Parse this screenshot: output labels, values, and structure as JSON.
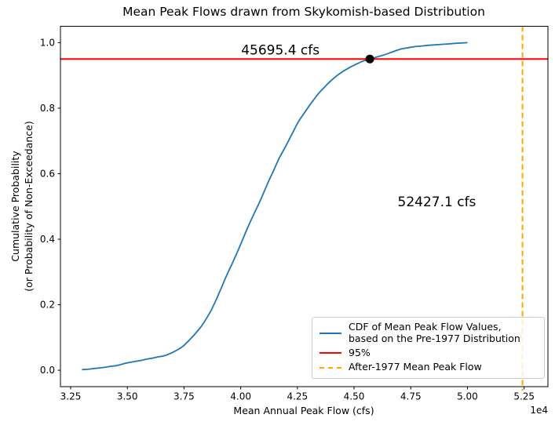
{
  "title": "Mean Peak Flows drawn from Skykomish-based Distribution",
  "chart_data": {
    "type": "line",
    "title": "Mean Peak Flows drawn from Skykomish-based Distribution",
    "xlabel": "Mean Annual Peak Flow (cfs)",
    "ylabel": "Cumulative Probability\n(or Probability of Non-Exceedance)",
    "x_offset_text": "1e4",
    "xlim": [
      32050,
      53550
    ],
    "ylim": [
      -0.05,
      1.05
    ],
    "grid": false,
    "x_ticks": {
      "values": [
        32500,
        35000,
        37500,
        40000,
        42500,
        45000,
        47500,
        50000,
        52500
      ],
      "labels": [
        "3.25",
        "3.50",
        "3.75",
        "4.00",
        "4.25",
        "4.50",
        "4.75",
        "5.00",
        "5.25"
      ]
    },
    "y_ticks": {
      "values": [
        0.0,
        0.2,
        0.4,
        0.6,
        0.8,
        1.0
      ],
      "labels": [
        "0.0",
        "0.2",
        "0.4",
        "0.6",
        "0.8",
        "1.0"
      ]
    },
    "series": [
      {
        "name": "CDF of Mean Peak Flow Values, based on the Pre-1977 Distribution",
        "color": "#1f77b4",
        "style": "solid",
        "points": [
          [
            33000,
            0.002
          ],
          [
            33250,
            0.003
          ],
          [
            33500,
            0.005
          ],
          [
            33750,
            0.007
          ],
          [
            34000,
            0.009
          ],
          [
            34250,
            0.012
          ],
          [
            34500,
            0.014
          ],
          [
            34700,
            0.017
          ],
          [
            34900,
            0.021
          ],
          [
            35100,
            0.024
          ],
          [
            35350,
            0.027
          ],
          [
            35600,
            0.03
          ],
          [
            35850,
            0.034
          ],
          [
            36100,
            0.037
          ],
          [
            36350,
            0.041
          ],
          [
            36550,
            0.043
          ],
          [
            36750,
            0.047
          ],
          [
            36950,
            0.053
          ],
          [
            37150,
            0.06
          ],
          [
            37350,
            0.068
          ],
          [
            37500,
            0.076
          ],
          [
            37650,
            0.086
          ],
          [
            37800,
            0.097
          ],
          [
            37950,
            0.108
          ],
          [
            38100,
            0.12
          ],
          [
            38250,
            0.133
          ],
          [
            38400,
            0.148
          ],
          [
            38550,
            0.165
          ],
          [
            38700,
            0.183
          ],
          [
            38850,
            0.205
          ],
          [
            39000,
            0.228
          ],
          [
            39150,
            0.252
          ],
          [
            39300,
            0.277
          ],
          [
            39450,
            0.3
          ],
          [
            39600,
            0.322
          ],
          [
            39750,
            0.345
          ],
          [
            39900,
            0.368
          ],
          [
            40050,
            0.393
          ],
          [
            40200,
            0.418
          ],
          [
            40350,
            0.442
          ],
          [
            40500,
            0.465
          ],
          [
            40650,
            0.487
          ],
          [
            40800,
            0.508
          ],
          [
            40950,
            0.532
          ],
          [
            41100,
            0.556
          ],
          [
            41250,
            0.58
          ],
          [
            41400,
            0.602
          ],
          [
            41550,
            0.625
          ],
          [
            41700,
            0.648
          ],
          [
            41850,
            0.667
          ],
          [
            42000,
            0.686
          ],
          [
            42150,
            0.706
          ],
          [
            42300,
            0.726
          ],
          [
            42450,
            0.747
          ],
          [
            42600,
            0.765
          ],
          [
            42750,
            0.78
          ],
          [
            42900,
            0.795
          ],
          [
            43050,
            0.81
          ],
          [
            43200,
            0.824
          ],
          [
            43350,
            0.838
          ],
          [
            43500,
            0.85
          ],
          [
            43650,
            0.861
          ],
          [
            43800,
            0.872
          ],
          [
            43950,
            0.882
          ],
          [
            44100,
            0.891
          ],
          [
            44250,
            0.9
          ],
          [
            44400,
            0.907
          ],
          [
            44550,
            0.914
          ],
          [
            44700,
            0.92
          ],
          [
            44850,
            0.926
          ],
          [
            45000,
            0.931
          ],
          [
            45150,
            0.936
          ],
          [
            45300,
            0.941
          ],
          [
            45500,
            0.946
          ],
          [
            45695.4,
            0.95
          ],
          [
            45900,
            0.954
          ],
          [
            46100,
            0.958
          ],
          [
            46300,
            0.962
          ],
          [
            46500,
            0.967
          ],
          [
            46700,
            0.972
          ],
          [
            46900,
            0.977
          ],
          [
            47100,
            0.981
          ],
          [
            47400,
            0.985
          ],
          [
            47700,
            0.988
          ],
          [
            48000,
            0.99
          ],
          [
            48300,
            0.992
          ],
          [
            48700,
            0.994
          ],
          [
            49100,
            0.996
          ],
          [
            49500,
            0.998
          ],
          [
            50000,
            1.0
          ]
        ]
      }
    ],
    "hline": {
      "y": 0.95,
      "color": "#ff0000",
      "label": "95%"
    },
    "vline": {
      "x": 52427.1,
      "color": "#ffa500",
      "style": "dashed",
      "label": "After-1977 Mean Peak Flow"
    },
    "marker": {
      "x": 45695.4,
      "y": 0.95,
      "color": "#000000"
    },
    "annotations": [
      {
        "text": "45695.4 cfs",
        "x": 41750,
        "y": 0.978
      },
      {
        "text": "52427.1 cfs",
        "x": 48650,
        "y": 0.515
      }
    ],
    "legend": {
      "position": "lower right",
      "entries": [
        {
          "label": "CDF of Mean Peak Flow Values,\nbased on the Pre-1977 Distribution",
          "color": "#1f77b4",
          "style": "solid"
        },
        {
          "label": "95%",
          "color": "#ff0000",
          "style": "solid"
        },
        {
          "label": "After-1977 Mean Peak Flow",
          "color": "#ffa500",
          "style": "dashed"
        }
      ]
    }
  }
}
